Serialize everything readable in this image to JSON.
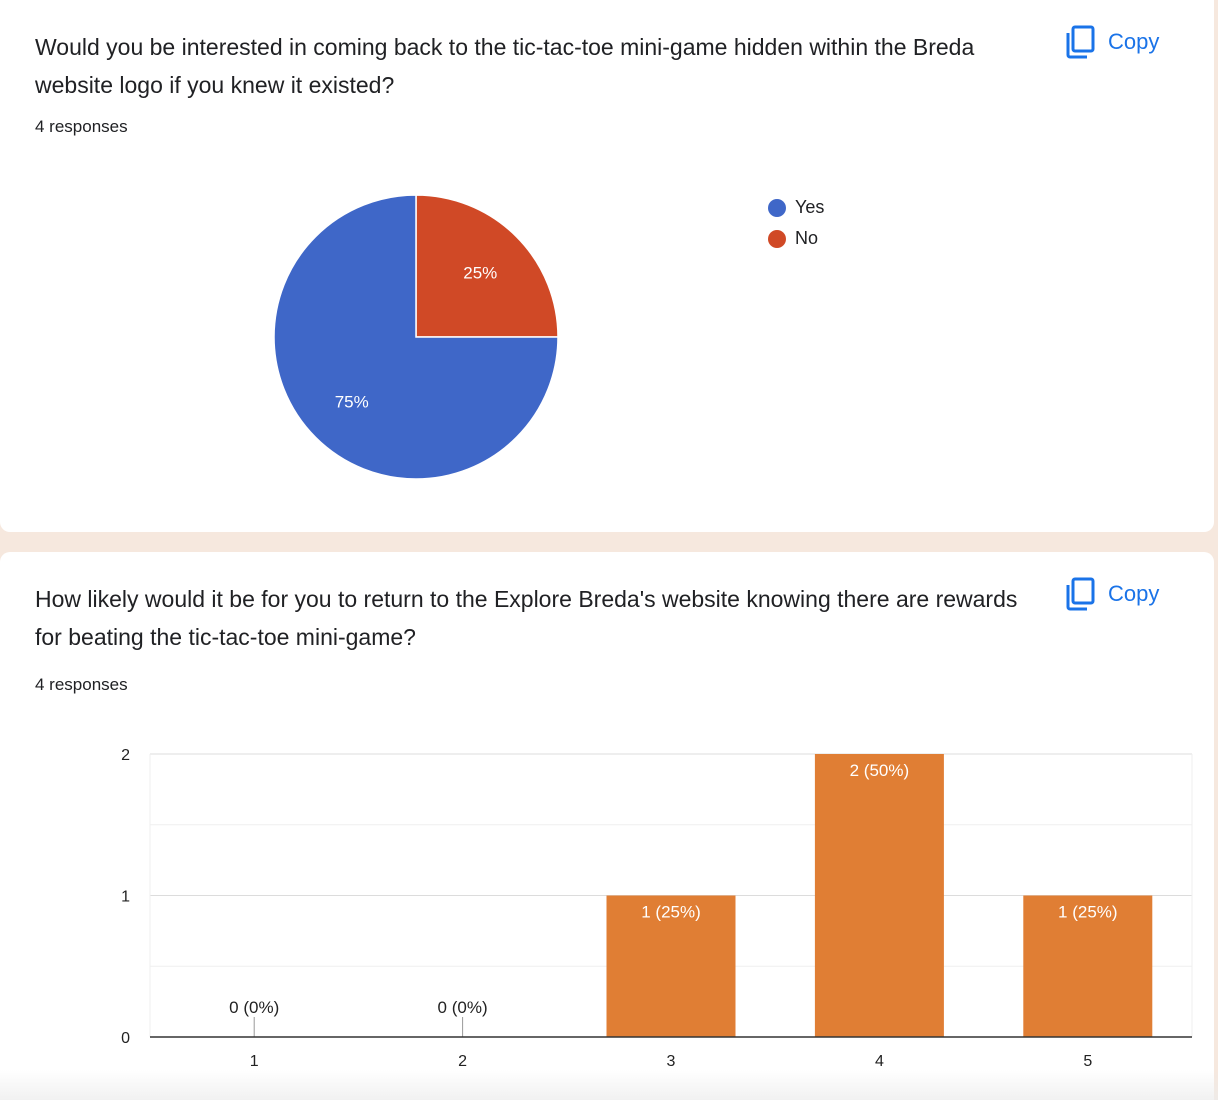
{
  "cards": [
    {
      "question": "Would you be interested in coming back to the tic-tac-toe mini-game hidden within the Breda website logo if you knew it existed?",
      "responses": "4 responses",
      "copy_label": "Copy"
    },
    {
      "question": "How likely would it be for you to return to the Explore Breda's website knowing there are rewards for beating the tic-tac-toe mini-game?",
      "responses": "4 responses",
      "copy_label": "Copy"
    }
  ],
  "chart_data": [
    {
      "type": "pie",
      "labels": [
        "Yes",
        "No"
      ],
      "values": [
        75,
        25
      ],
      "slice_labels": [
        "75%",
        "25%"
      ],
      "colors": [
        "#3f67c8",
        "#d04926"
      ],
      "legend_position": "right"
    },
    {
      "type": "bar",
      "categories": [
        "1",
        "2",
        "3",
        "4",
        "5"
      ],
      "values": [
        0,
        0,
        1,
        2,
        1
      ],
      "data_labels": [
        "0 (0%)",
        "0 (0%)",
        "1 (25%)",
        "2 (50%)",
        "1 (25%)"
      ],
      "ylim": [
        0,
        2
      ],
      "yticks": [
        "0",
        "1",
        "2"
      ],
      "color": "#e07e34",
      "grid": true
    }
  ]
}
